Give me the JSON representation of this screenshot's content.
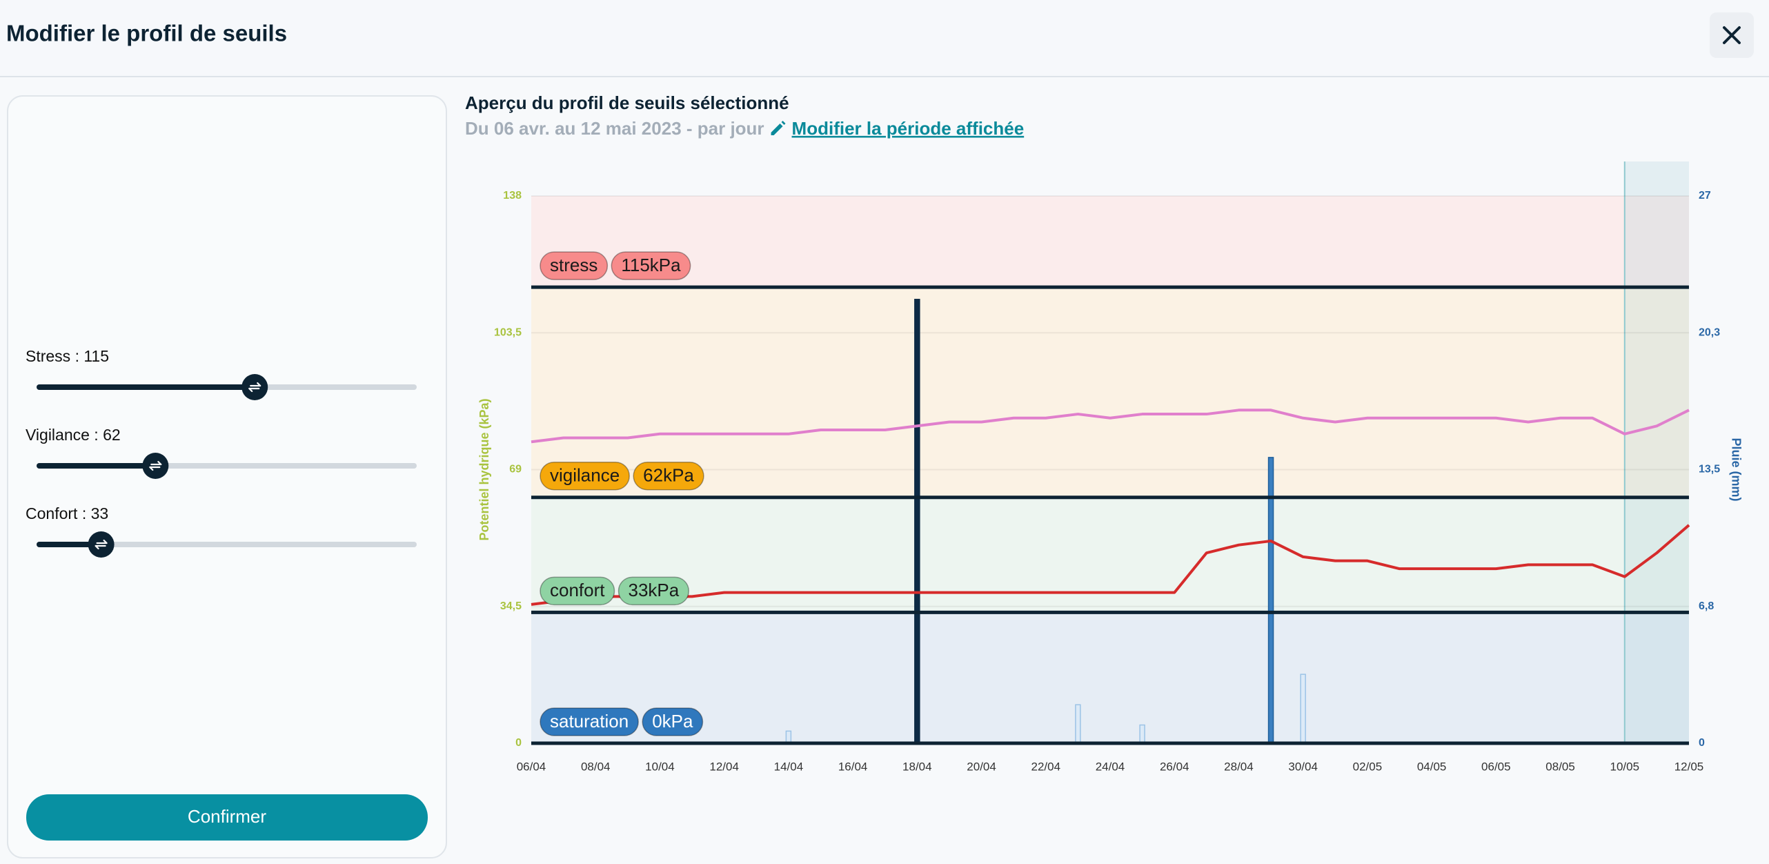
{
  "header": {
    "title": "Modifier le profil de seuils"
  },
  "sliders": {
    "range": [
      0,
      200
    ],
    "items": [
      {
        "label": "Stress : 115",
        "value": 115
      },
      {
        "label": "Vigilance : 62",
        "value": 62
      },
      {
        "label": "Confort : 33",
        "value": 33
      }
    ]
  },
  "button": {
    "label": "Confirmer"
  },
  "preview": {
    "heading": "Aperçu du profil de seuils sélectionné",
    "period": "Du 06 avr. au 12 mai 2023 - par jour",
    "link": "Modifier la période affichée"
  },
  "chart_data": {
    "type": "line",
    "ylabel": "Potentiel hydrique (kPa)",
    "y2label": "Pluie (mm)",
    "categories": [
      "06/04",
      null,
      "08/04",
      null,
      "10/04",
      null,
      "12/04",
      null,
      "14/04",
      null,
      "16/04",
      null,
      "18/04",
      null,
      "20/04",
      null,
      "22/04",
      null,
      "24/04",
      null,
      "26/04",
      null,
      "28/04",
      null,
      "30/04",
      null,
      "02/05",
      null,
      "04/05",
      null,
      "06/05",
      null,
      "08/05",
      null,
      "10/05",
      null,
      "12/05"
    ],
    "ylim": [
      0,
      138
    ],
    "yticks": [
      0,
      {
        "value": 34.5,
        "label": "34,5"
      },
      69,
      {
        "value": 103.5,
        "label": "103,5"
      },
      138
    ],
    "y2lim": [
      0,
      27
    ],
    "y2ticks": [
      0,
      {
        "value": 6.75,
        "label": "6,8"
      },
      {
        "value": 13.5,
        "label": "13,5"
      },
      {
        "value": 20.25,
        "label": "20,3"
      },
      27
    ],
    "grid": true,
    "shaded_from": "10/05",
    "thresholds": [
      {
        "name": "stress",
        "value": 115,
        "value_label": "115kPa",
        "color": "#f78b8b",
        "band_color": "#fbecec",
        "text_color": "#1a1a1a"
      },
      {
        "name": "vigilance",
        "value": 62,
        "value_label": "62kPa",
        "color": "#f5a80b",
        "band_color": "#fbf2e4",
        "text_color": "#1a1a1a"
      },
      {
        "name": "confort",
        "value": 33,
        "value_label": "33kPa",
        "color": "#8fd3a3",
        "band_color": "#edf5f0",
        "text_color": "#1a1a1a"
      },
      {
        "name": "saturation",
        "value": 0,
        "value_label": "0kPa",
        "color": "#2f78bd",
        "band_color": "#e6edf5",
        "text_color": "#ffffff"
      }
    ],
    "series": [
      {
        "type": "bar",
        "axis": "y2",
        "color": "#dceaf7",
        "stroke": "#9cc3e6",
        "values": [
          null,
          null,
          null,
          null,
          null,
          null,
          null,
          null,
          0.6,
          null,
          null,
          null,
          null,
          null,
          null,
          null,
          null,
          1.9,
          null,
          0.9,
          null,
          null,
          null,
          null,
          3.4,
          null,
          null,
          null,
          null,
          null,
          null,
          null,
          null,
          null,
          null,
          null,
          null
        ]
      },
      {
        "type": "bar",
        "axis": "y2",
        "color": "#0d2a45",
        "stroke": "#0d2a45",
        "values": [
          null,
          null,
          null,
          null,
          null,
          null,
          null,
          null,
          null,
          null,
          null,
          null,
          21.9,
          null,
          null,
          null,
          null,
          null,
          null,
          null,
          null,
          null,
          null,
          null,
          null,
          null,
          null,
          null,
          null,
          null,
          null,
          null,
          null,
          null,
          null,
          null,
          null
        ]
      },
      {
        "type": "bar",
        "axis": "y2",
        "color": "#3a7fc0",
        "stroke": "#1f5f9a",
        "values": [
          null,
          null,
          null,
          null,
          null,
          null,
          null,
          null,
          null,
          null,
          null,
          null,
          null,
          null,
          null,
          null,
          null,
          null,
          null,
          null,
          null,
          null,
          null,
          14.1,
          null,
          null,
          null,
          null,
          null,
          null,
          null,
          null,
          null,
          null,
          null,
          null,
          null
        ]
      },
      {
        "type": "line",
        "color": "#e07fcc",
        "values": [
          76,
          77,
          77,
          77,
          78,
          78,
          78,
          78,
          78,
          79,
          79,
          79,
          80,
          81,
          81,
          82,
          82,
          83,
          82,
          83,
          83,
          83,
          84,
          84,
          82,
          81,
          82,
          82,
          82,
          82,
          82,
          81,
          82,
          82,
          78,
          80,
          84
        ]
      },
      {
        "type": "line",
        "color": "#d62b2b",
        "values": [
          35,
          36,
          37,
          37,
          37,
          37,
          38,
          38,
          38,
          38,
          38,
          38,
          38,
          38,
          38,
          38,
          38,
          38,
          38,
          38,
          38,
          48,
          50,
          51,
          47,
          46,
          46,
          44,
          44,
          44,
          44,
          45,
          45,
          45,
          42,
          48,
          55
        ]
      }
    ]
  }
}
